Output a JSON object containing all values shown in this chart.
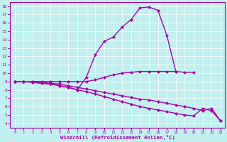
{
  "xlabel": "Windchill (Refroidissement éolien,°C)",
  "xlim": [
    -0.5,
    23.5
  ],
  "ylim": [
    3.5,
    18.5
  ],
  "xticks": [
    0,
    1,
    2,
    3,
    4,
    5,
    6,
    7,
    8,
    9,
    10,
    11,
    12,
    13,
    14,
    15,
    16,
    17,
    18,
    19,
    20,
    21,
    22,
    23
  ],
  "yticks": [
    4,
    5,
    6,
    7,
    8,
    9,
    10,
    11,
    12,
    13,
    14,
    15,
    16,
    17,
    18
  ],
  "bg_color": "#c0f0f0",
  "line_color": "#aa00aa",
  "markersize": 2.5,
  "linewidth": 1.0,
  "line1_x": [
    0,
    1,
    2,
    3,
    4,
    5,
    6,
    7,
    8,
    9,
    10,
    11,
    12,
    13,
    14,
    15,
    16,
    17,
    18,
    19,
    20
  ],
  "line1_y": [
    9.0,
    9.0,
    9.0,
    9.0,
    9.0,
    9.0,
    9.0,
    9.0,
    9.0,
    9.2,
    9.5,
    9.8,
    10.0,
    10.1,
    10.2,
    10.2,
    10.2,
    10.2,
    10.2,
    10.1,
    10.1
  ],
  "line2_x": [
    0,
    1,
    2,
    3,
    4,
    5,
    6,
    7,
    8,
    9,
    10,
    11,
    12,
    13,
    14,
    15,
    16,
    17,
    18,
    19,
    20,
    21,
    22,
    23
  ],
  "line2_y": [
    9.0,
    9.0,
    9.0,
    8.9,
    8.8,
    8.7,
    8.5,
    8.3,
    8.1,
    7.9,
    7.7,
    7.5,
    7.3,
    7.1,
    6.9,
    6.8,
    6.6,
    6.4,
    6.2,
    6.0,
    5.8,
    5.5,
    5.8,
    4.3
  ],
  "line3_x": [
    0,
    1,
    2,
    3,
    4,
    5,
    6,
    7,
    8,
    9,
    10,
    11,
    12,
    13,
    14,
    15,
    16,
    17,
    18
  ],
  "line3_y": [
    9.0,
    9.0,
    8.9,
    8.8,
    8.7,
    8.5,
    8.3,
    8.0,
    9.5,
    12.2,
    13.8,
    14.3,
    15.5,
    16.4,
    17.8,
    17.9,
    17.5,
    14.5,
    10.2
  ],
  "line4_x": [
    0,
    1,
    2,
    3,
    4,
    5,
    6,
    7,
    8,
    9,
    10,
    11,
    12,
    13,
    14,
    15,
    16,
    17,
    18,
    19,
    20,
    21,
    22,
    23
  ],
  "line4_y": [
    9.0,
    9.0,
    8.9,
    8.8,
    8.7,
    8.5,
    8.3,
    8.0,
    7.8,
    7.5,
    7.2,
    6.9,
    6.6,
    6.3,
    6.0,
    5.8,
    5.6,
    5.4,
    5.2,
    5.0,
    4.9,
    5.8,
    5.5,
    4.3
  ]
}
